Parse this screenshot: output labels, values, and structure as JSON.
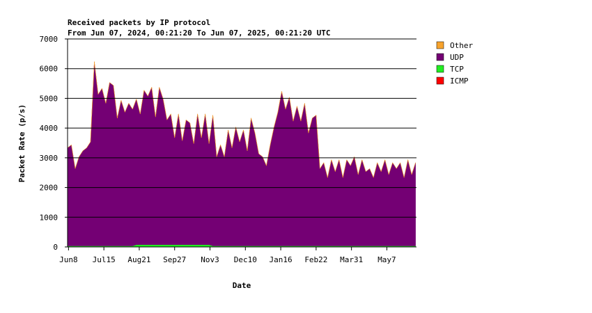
{
  "chart_data": {
    "type": "stacked-area",
    "title": "Received packets by IP protocol",
    "subtitle": "From Jun 07, 2024, 00:21:20 To Jun 07, 2025, 00:21:20 UTC",
    "xlabel": "Date",
    "ylabel": "Packet Rate (p/s)",
    "xlim": [
      0,
      365
    ],
    "xticks": [
      {
        "value": 1,
        "label": "Jun8"
      },
      {
        "value": 38,
        "label": "Jul15"
      },
      {
        "value": 75,
        "label": "Aug21"
      },
      {
        "value": 112,
        "label": "Sep27"
      },
      {
        "value": 149,
        "label": "Nov3"
      },
      {
        "value": 186,
        "label": "Dec10"
      },
      {
        "value": 223,
        "label": "Jan16"
      },
      {
        "value": 260,
        "label": "Feb22"
      },
      {
        "value": 297,
        "label": "Mar31"
      },
      {
        "value": 334,
        "label": "May7"
      }
    ],
    "ylim": [
      0,
      7000
    ],
    "yticks": [
      0,
      1000,
      2000,
      3000,
      4000,
      5000,
      6000,
      7000
    ],
    "grid": true,
    "x": [
      0,
      4,
      8,
      12,
      16,
      20,
      24,
      28,
      32,
      36,
      40,
      44,
      48,
      52,
      56,
      60,
      64,
      68,
      72,
      76,
      80,
      84,
      88,
      92,
      96,
      100,
      104,
      108,
      112,
      116,
      120,
      124,
      128,
      132,
      136,
      140,
      144,
      148,
      152,
      156,
      160,
      164,
      168,
      172,
      176,
      180,
      184,
      188,
      192,
      196,
      200,
      204,
      208,
      212,
      216,
      220,
      224,
      228,
      232,
      236,
      240,
      244,
      248,
      252,
      256,
      260,
      264,
      268,
      272,
      276,
      280,
      284,
      288,
      292,
      296,
      300,
      304,
      308,
      312,
      316,
      320,
      324,
      328,
      332,
      336,
      340,
      344,
      348,
      352,
      356,
      360,
      364
    ],
    "series": [
      {
        "name": "ICMP",
        "color": "#ff0000",
        "values": [
          5,
          5,
          5,
          5,
          5,
          5,
          5,
          5,
          5,
          5,
          5,
          5,
          5,
          5,
          5,
          5,
          5,
          5,
          5,
          5,
          5,
          5,
          5,
          5,
          5,
          5,
          5,
          5,
          5,
          5,
          5,
          5,
          5,
          5,
          5,
          5,
          5,
          5,
          5,
          5,
          5,
          5,
          5,
          5,
          5,
          5,
          5,
          5,
          5,
          5,
          5,
          5,
          5,
          5,
          5,
          5,
          5,
          5,
          5,
          5,
          5,
          5,
          5,
          5,
          5,
          5,
          5,
          5,
          5,
          5,
          5,
          5,
          5,
          5,
          5,
          5,
          5,
          5,
          5,
          5,
          5,
          5,
          5,
          5,
          5,
          5,
          5,
          5,
          5,
          5,
          5,
          5
        ]
      },
      {
        "name": "TCP",
        "color": "#22ee22",
        "values": [
          30,
          30,
          30,
          30,
          30,
          30,
          30,
          30,
          30,
          30,
          30,
          30,
          30,
          30,
          30,
          30,
          30,
          30,
          70,
          70,
          70,
          70,
          70,
          70,
          70,
          70,
          70,
          70,
          70,
          70,
          70,
          70,
          70,
          70,
          70,
          70,
          70,
          70,
          30,
          30,
          30,
          30,
          30,
          30,
          30,
          30,
          30,
          30,
          30,
          30,
          30,
          30,
          30,
          30,
          30,
          30,
          30,
          30,
          30,
          30,
          30,
          30,
          30,
          30,
          30,
          30,
          30,
          30,
          30,
          30,
          30,
          30,
          30,
          30,
          30,
          30,
          30,
          30,
          30,
          30,
          30,
          30,
          30,
          30,
          30,
          30,
          30,
          30,
          30,
          30,
          30,
          30
        ]
      },
      {
        "name": "UDP",
        "color": "#740074",
        "values": [
          3300,
          3400,
          2600,
          3000,
          3200,
          3300,
          3500,
          6200,
          5100,
          5300,
          4800,
          5500,
          5400,
          4300,
          4900,
          4500,
          4800,
          4600,
          4900,
          4400,
          5200,
          5000,
          5300,
          4300,
          5300,
          4900,
          4200,
          4400,
          3600,
          4400,
          3500,
          4200,
          4100,
          3400,
          4400,
          3600,
          4400,
          3400,
          4400,
          3000,
          3400,
          3000,
          3900,
          3300,
          4000,
          3500,
          3900,
          3200,
          4300,
          3800,
          3100,
          3000,
          2700,
          3400,
          4000,
          4500,
          5200,
          4600,
          5000,
          4200,
          4700,
          4200,
          4800,
          3800,
          4300,
          4400,
          2600,
          2800,
          2300,
          2900,
          2500,
          2900,
          2300,
          2900,
          2700,
          3000,
          2400,
          2900,
          2500,
          2600,
          2300,
          2800,
          2500,
          2900,
          2400,
          2800,
          2600,
          2800,
          2300,
          2900,
          2400,
          2800
        ]
      },
      {
        "name": "Other",
        "color": "#f7a32c",
        "values": [
          0,
          0,
          0,
          0,
          0,
          0,
          0,
          0,
          0,
          0,
          0,
          0,
          0,
          0,
          0,
          0,
          0,
          0,
          0,
          0,
          0,
          0,
          0,
          0,
          0,
          0,
          0,
          0,
          0,
          0,
          0,
          0,
          0,
          0,
          0,
          0,
          0,
          0,
          0,
          0,
          0,
          0,
          0,
          0,
          0,
          0,
          0,
          0,
          0,
          0,
          0,
          0,
          0,
          0,
          0,
          0,
          0,
          0,
          0,
          0,
          0,
          0,
          0,
          0,
          0,
          0,
          0,
          0,
          0,
          0,
          0,
          0,
          0,
          0,
          0,
          0,
          0,
          0,
          0,
          0,
          0,
          0,
          0,
          0,
          0,
          0,
          0,
          0,
          0,
          0,
          0,
          0
        ]
      }
    ]
  }
}
